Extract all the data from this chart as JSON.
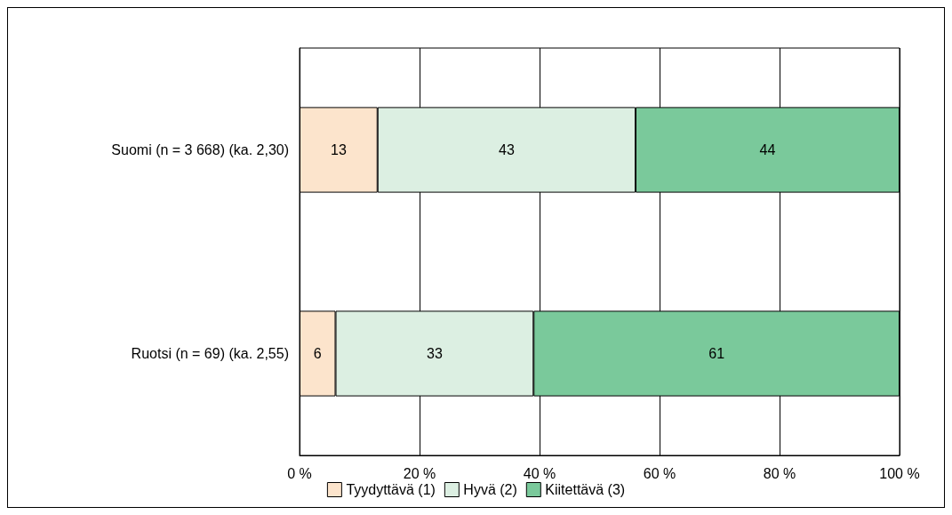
{
  "chart_data": {
    "type": "bar",
    "orientation": "horizontal",
    "stacked": true,
    "categories": [
      "Suomi (n = 3 668) (ka. 2,30)",
      "Ruotsi (n = 69) (ka. 2,55)"
    ],
    "series": [
      {
        "name": "Tyydyttävä (1)",
        "color": "#fce4cc",
        "values": [
          13,
          6
        ]
      },
      {
        "name": "Hyvä (2)",
        "color": "#dcefe2",
        "values": [
          43,
          33
        ]
      },
      {
        "name": "Kiitettävä (3)",
        "color": "#7ac99b",
        "values": [
          44,
          61
        ]
      }
    ],
    "xlim": [
      0,
      100
    ],
    "xticks": [
      {
        "value": 0,
        "label": "0 %"
      },
      {
        "value": 20,
        "label": "20 %"
      },
      {
        "value": 40,
        "label": "40 %"
      },
      {
        "value": 60,
        "label": "60 %"
      },
      {
        "value": 80,
        "label": "80 %"
      },
      {
        "value": 100,
        "label": "100 %"
      }
    ],
    "grid": "x",
    "legend": "bottom",
    "data_labels": true
  }
}
